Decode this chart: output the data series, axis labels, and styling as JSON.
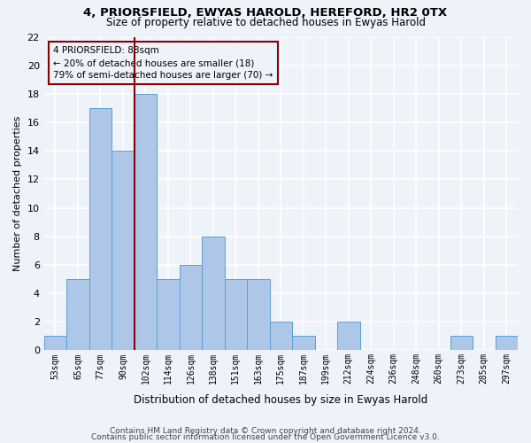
{
  "title1": "4, PRIORSFIELD, EWYAS HAROLD, HEREFORD, HR2 0TX",
  "title2": "Size of property relative to detached houses in Ewyas Harold",
  "xlabel": "Distribution of detached houses by size in Ewyas Harold",
  "ylabel": "Number of detached properties",
  "bar_labels": [
    "53sqm",
    "65sqm",
    "77sqm",
    "90sqm",
    "102sqm",
    "114sqm",
    "126sqm",
    "138sqm",
    "151sqm",
    "163sqm",
    "175sqm",
    "187sqm",
    "199sqm",
    "212sqm",
    "224sqm",
    "236sqm",
    "248sqm",
    "260sqm",
    "273sqm",
    "285sqm",
    "297sqm"
  ],
  "bar_heights": [
    1,
    5,
    17,
    14,
    18,
    5,
    6,
    8,
    5,
    5,
    2,
    1,
    0,
    2,
    0,
    0,
    0,
    0,
    1,
    0,
    1
  ],
  "bar_color": "#aec6e8",
  "bar_edgecolor": "#5a9fd4",
  "bar_width": 1.0,
  "ylim": [
    0,
    22
  ],
  "yticks": [
    0,
    2,
    4,
    6,
    8,
    10,
    12,
    14,
    16,
    18,
    20,
    22
  ],
  "vline_x": 3.5,
  "vline_color": "#8b0000",
  "annotation_line1": "4 PRIORSFIELD: 88sqm",
  "annotation_line2": "← 20% of detached houses are smaller (18)",
  "annotation_line3": "79% of semi-detached houses are larger (70) →",
  "annotation_box_color": "#8b0000",
  "footer_line1": "Contains HM Land Registry data © Crown copyright and database right 2024.",
  "footer_line2": "Contains public sector information licensed under the Open Government Licence v3.0.",
  "bg_color": "#eef2f9",
  "grid_color": "#ffffff"
}
